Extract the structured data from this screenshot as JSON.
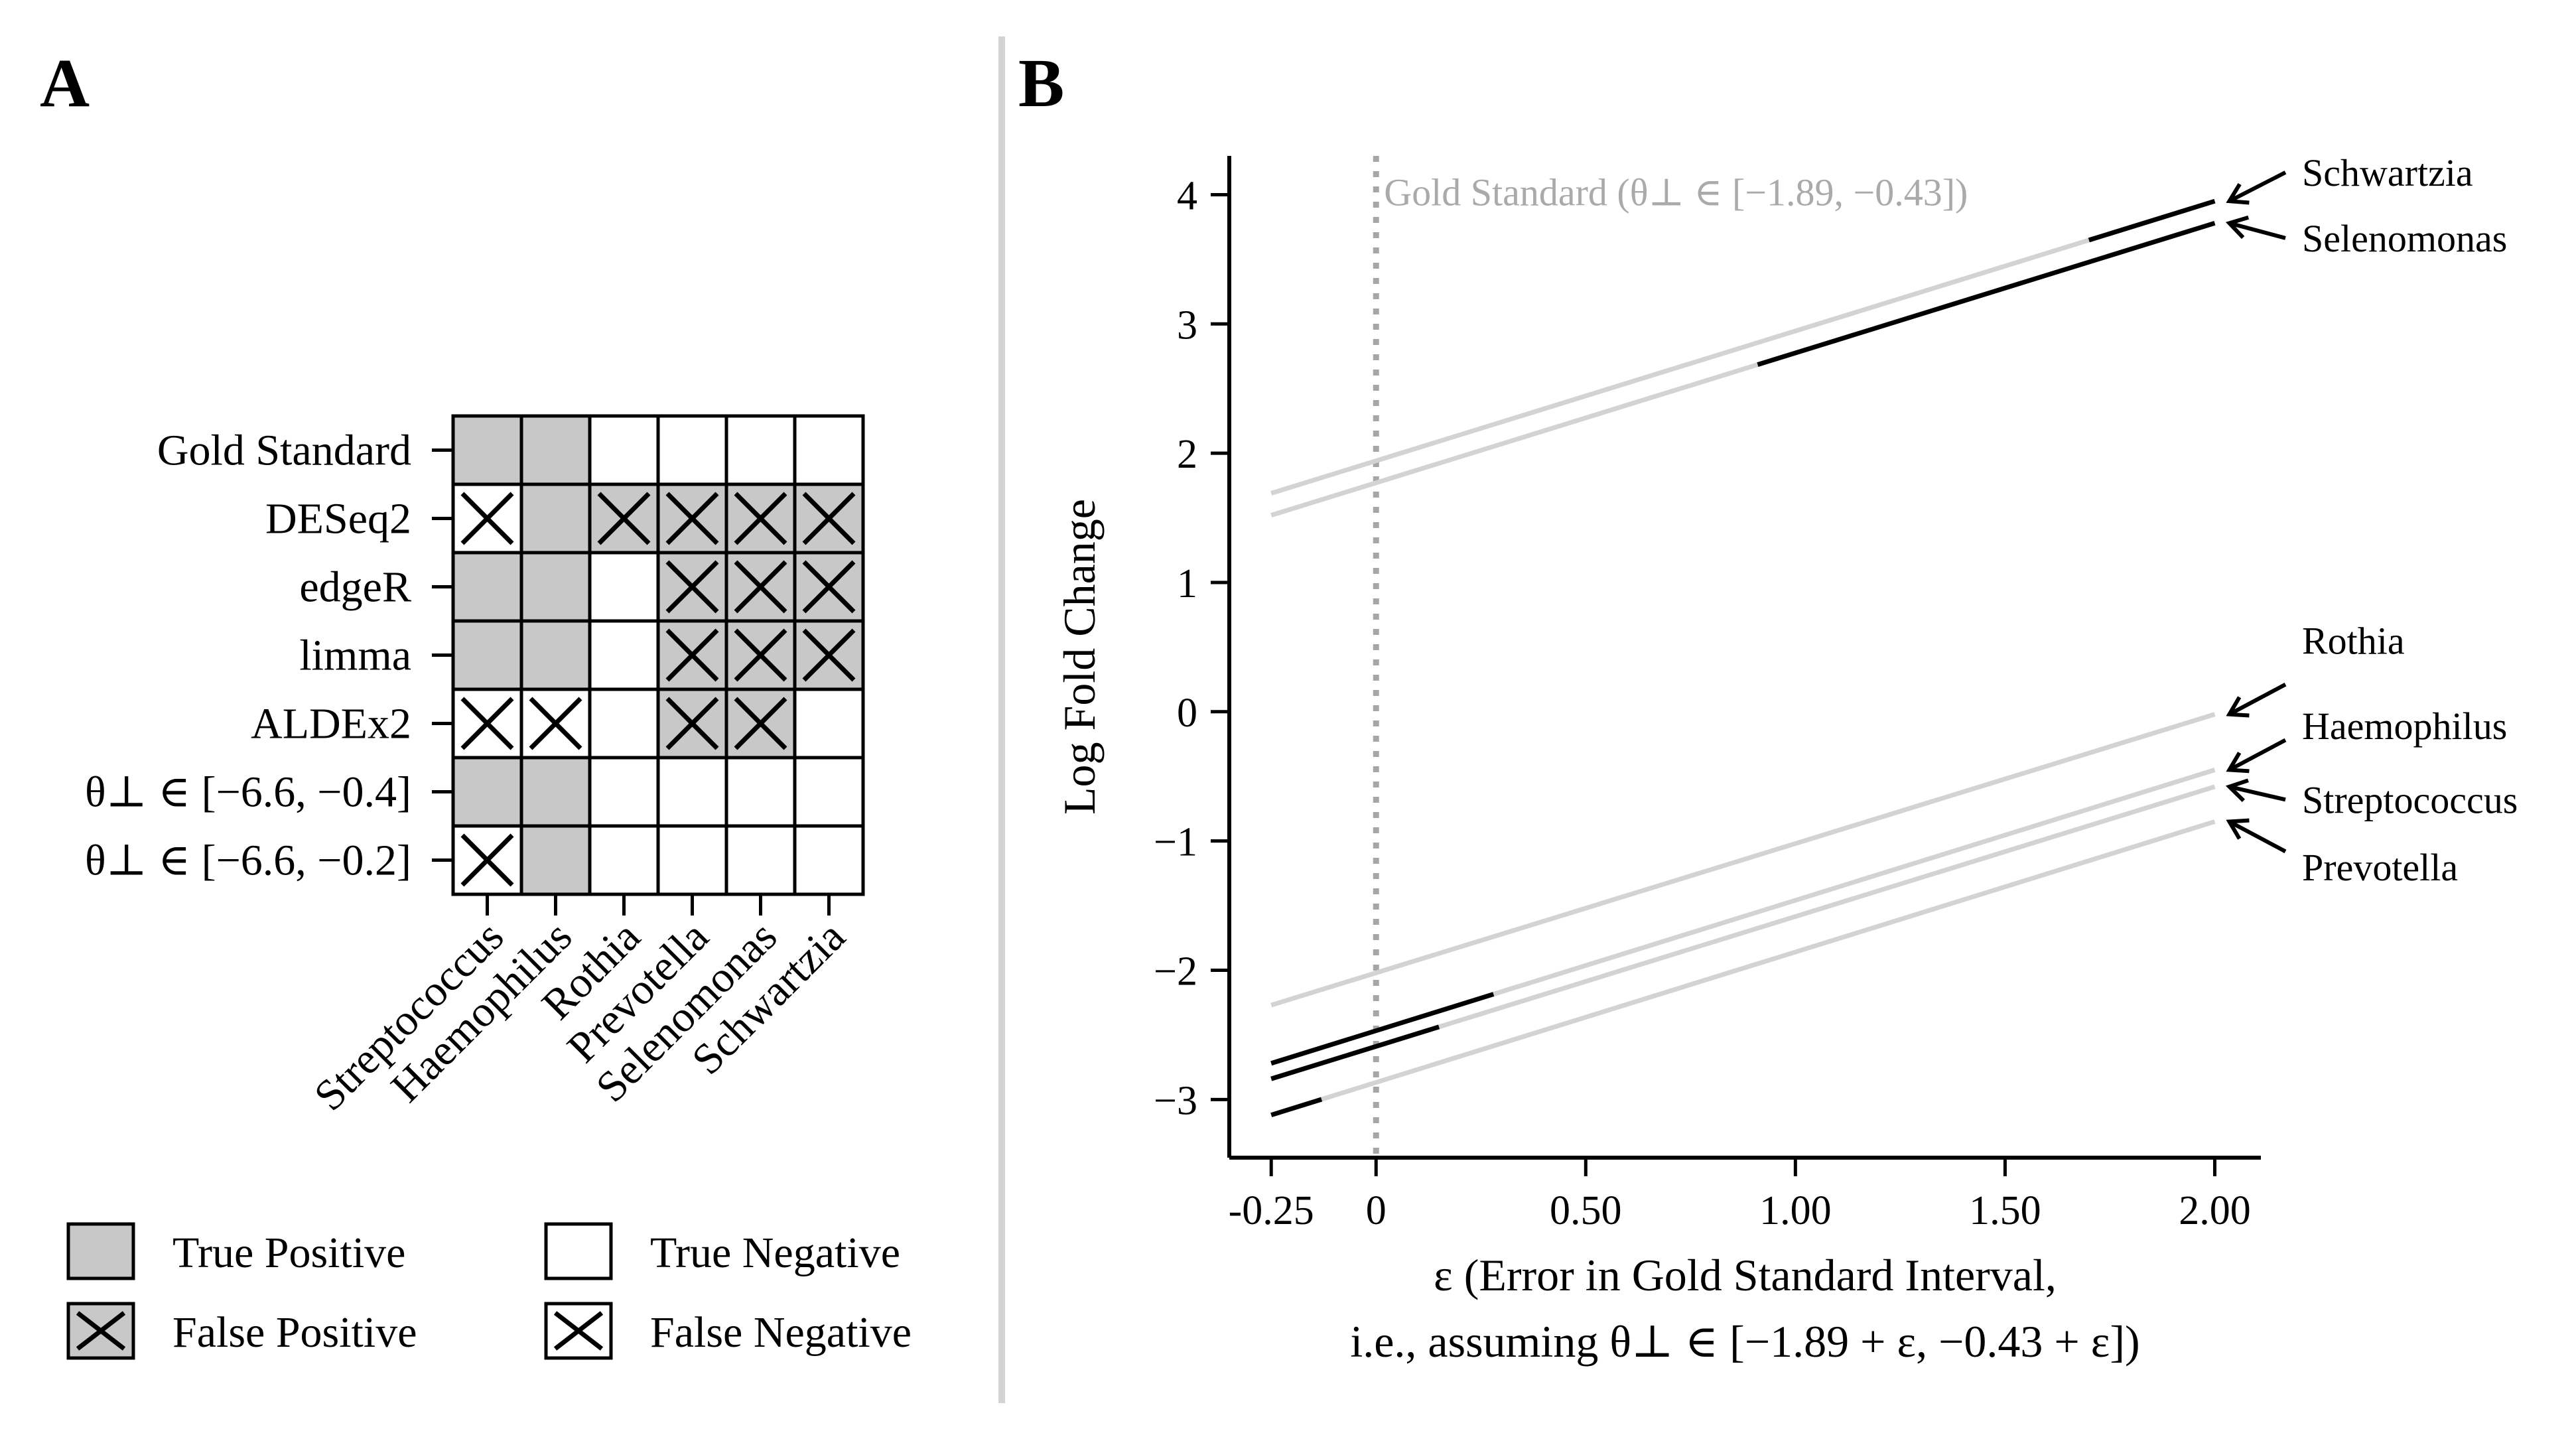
{
  "panels": {
    "a": {
      "label": "A"
    },
    "b": {
      "label": "B"
    }
  },
  "colors": {
    "true_positive_fill": "#c8c8c8",
    "false_positive_fill": "#c8c8c8",
    "true_negative_fill": "#ffffff",
    "false_negative_fill": "#ffffff",
    "outside_interval_line": "#d3d3d3",
    "inside_interval_line": "#000000",
    "gold_line": "#a6a6a6",
    "divider": "#d3d3d3"
  },
  "chart_data": [
    {
      "type": "heatmap",
      "title": "",
      "rows": [
        "Gold Standard",
        "DESeq2",
        "edgeR",
        "limma",
        "ALDEx2",
        "θ⊥ ∈ [−6.6, −0.4]",
        "θ⊥ ∈ [−6.6, −0.2]"
      ],
      "columns": [
        "Streptococcus",
        "Haemophilus",
        "Rothia",
        "Prevotella",
        "Selenomonas",
        "Schwartzia"
      ],
      "cells": [
        [
          "TP",
          "TP",
          "TN",
          "TN",
          "TN",
          "TN"
        ],
        [
          "FN",
          "TP",
          "FP",
          "FP",
          "FP",
          "FP"
        ],
        [
          "TP",
          "TP",
          "TN",
          "FP",
          "FP",
          "FP"
        ],
        [
          "TP",
          "TP",
          "TN",
          "FP",
          "FP",
          "FP"
        ],
        [
          "FN",
          "FN",
          "TN",
          "FP",
          "FP",
          "TN"
        ],
        [
          "TP",
          "TP",
          "TN",
          "TN",
          "TN",
          "TN"
        ],
        [
          "FN",
          "TP",
          "TN",
          "TN",
          "TN",
          "TN"
        ]
      ],
      "legend": [
        {
          "code": "TP",
          "label": "True Positive"
        },
        {
          "code": "TN",
          "label": "True Negative"
        },
        {
          "code": "FP",
          "label": "False Positive"
        },
        {
          "code": "FN",
          "label": "False Negative"
        }
      ]
    },
    {
      "type": "line",
      "title": "",
      "xlabel_line1": "ε (Error in Gold Standard Interval,",
      "xlabel_line2": "i.e., assuming θ⊥ ∈ [−1.89 + ε, −0.43 + ε])",
      "ylabel": "Log Fold Change",
      "xlim": [
        -0.35,
        2.11
      ],
      "ylim": [
        -3.45,
        4.3
      ],
      "xticks": [
        -0.25,
        0,
        0.5,
        1.0,
        1.5,
        2.0
      ],
      "xtick_labels": [
        "-0.25",
        "0",
        "0.50",
        "1.00",
        "1.50",
        "2.00"
      ],
      "yticks": [
        -3,
        -2,
        -1,
        0,
        1,
        2,
        3,
        4
      ],
      "ytick_labels": [
        "−3",
        "−2",
        "−1",
        "0",
        "1",
        "2",
        "3",
        "4"
      ],
      "reference_line": {
        "x": 0,
        "label": "Gold Standard (θ⊥ ∈ [−1.89, −0.43])"
      },
      "series": [
        {
          "name": "Schwartzia",
          "x": [
            -0.25,
            2.0
          ],
          "y": [
            1.69,
            3.95
          ],
          "significant_x_ranges": [
            [
              1.7,
              2.0
            ]
          ]
        },
        {
          "name": "Selenomonas",
          "x": [
            -0.25,
            2.0
          ],
          "y": [
            1.52,
            3.78
          ],
          "significant_x_ranges": [
            [
              0.91,
              2.0
            ]
          ]
        },
        {
          "name": "Rothia",
          "x": [
            -0.25,
            2.0
          ],
          "y": [
            -2.27,
            -0.02
          ],
          "significant_x_ranges": []
        },
        {
          "name": "Haemophilus",
          "x": [
            -0.25,
            2.0
          ],
          "y": [
            -2.72,
            -0.45
          ],
          "significant_x_ranges": [
            [
              -0.25,
              0.28
            ]
          ]
        },
        {
          "name": "Streptococcus",
          "x": [
            -0.25,
            2.0
          ],
          "y": [
            -2.84,
            -0.58
          ],
          "significant_x_ranges": [
            [
              -0.25,
              0.15
            ]
          ]
        },
        {
          "name": "Prevotella",
          "x": [
            -0.25,
            2.0
          ],
          "y": [
            -3.12,
            -0.85
          ],
          "significant_x_ranges": [
            [
              -0.25,
              -0.13
            ]
          ]
        }
      ]
    }
  ]
}
